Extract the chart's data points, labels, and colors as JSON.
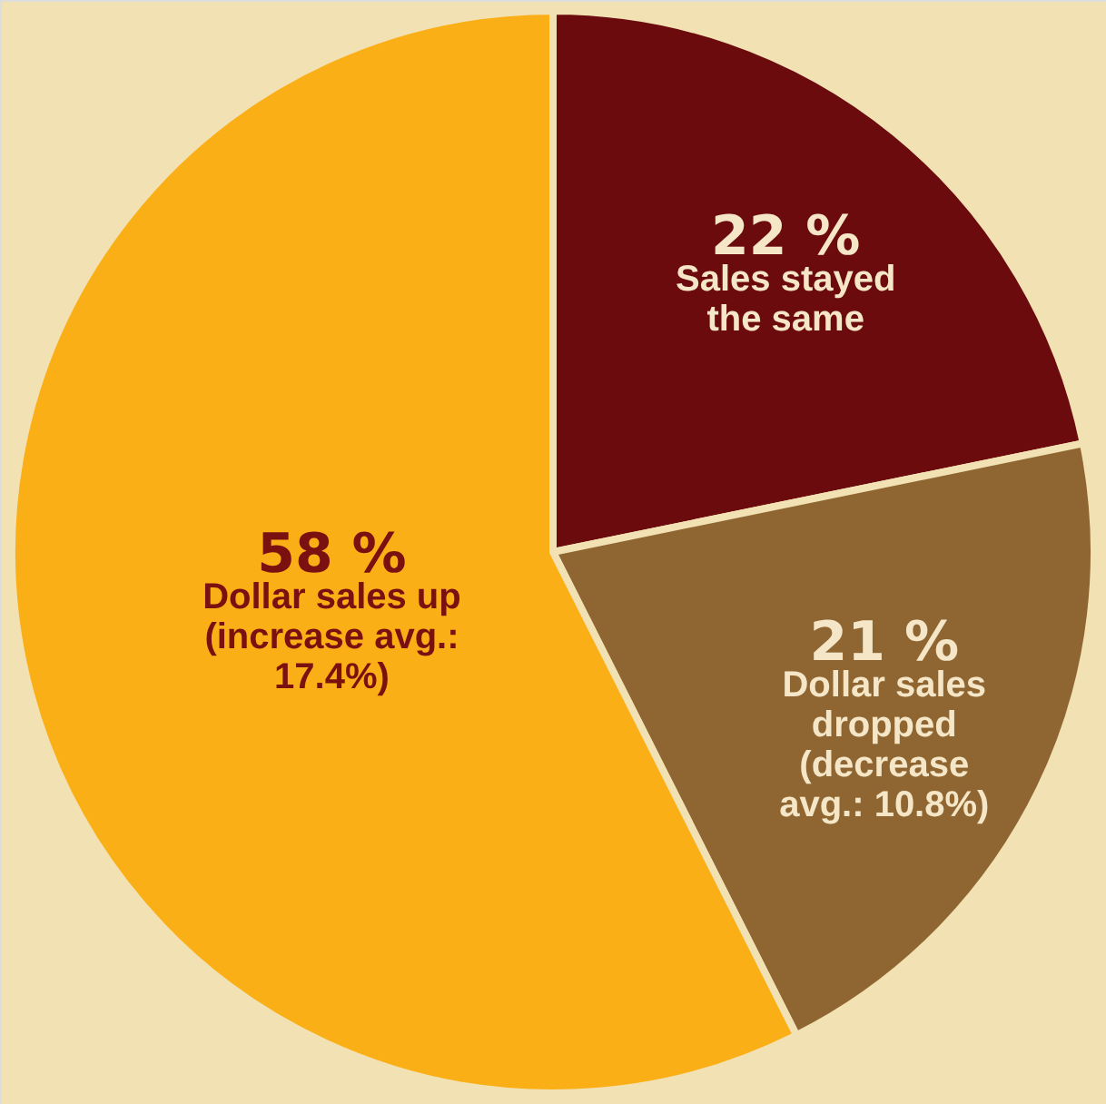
{
  "chart_data": {
    "type": "pie",
    "categories": [
      "Sales stayed the same",
      "Dollar sales dropped (decrease avg.: 10.8%)",
      "Dollar sales up (increase avg.: 17.4%)"
    ],
    "values": [
      22,
      21,
      58
    ],
    "value_labels": [
      "22 %",
      "21 %",
      "58 %"
    ],
    "colors": [
      "#6b0b0d",
      "#8f6631",
      "#fbaf17"
    ]
  }
}
